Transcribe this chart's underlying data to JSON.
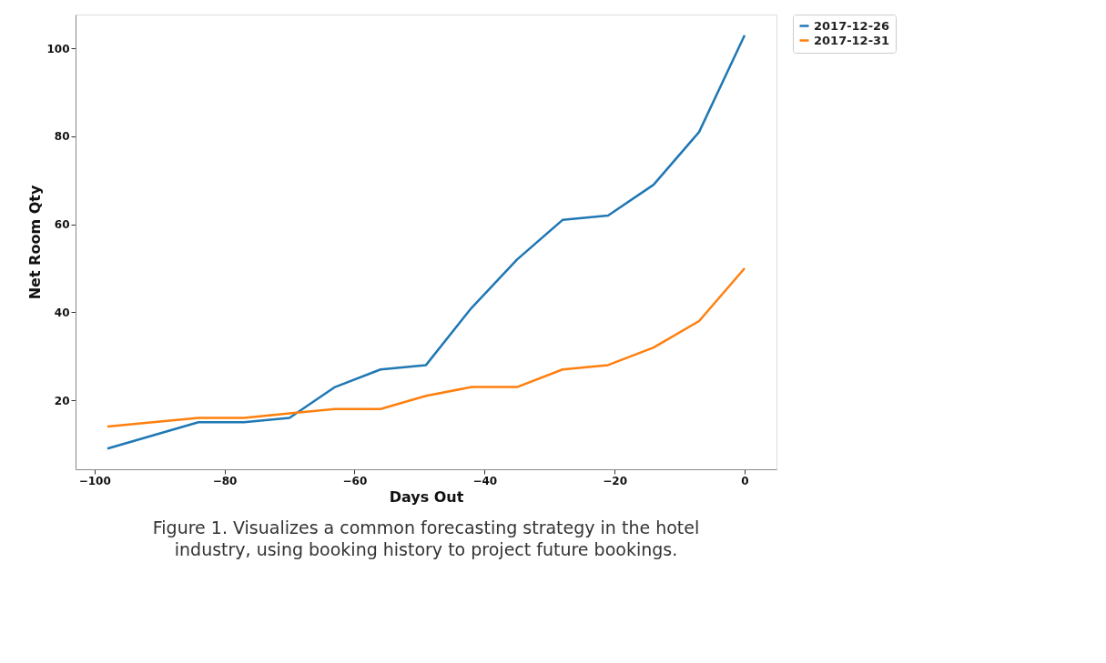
{
  "chart_data": {
    "type": "line",
    "xlabel": "Days Out",
    "ylabel": "Net Room Qty",
    "x": [
      -98,
      -91,
      -84,
      -77,
      -70,
      -63,
      -56,
      -49,
      -42,
      -35,
      -28,
      -21,
      -14,
      -7,
      0
    ],
    "series": [
      {
        "name": "2017-12-26",
        "color": "#1f77b4",
        "values": [
          9,
          12,
          15,
          15,
          16,
          23,
          27,
          28,
          41,
          52,
          61,
          62,
          69,
          81,
          103
        ]
      },
      {
        "name": "2017-12-31",
        "color": "#ff7f0e",
        "values": [
          14,
          15,
          16,
          16,
          17,
          18,
          18,
          21,
          23,
          23,
          27,
          28,
          32,
          38,
          50
        ]
      }
    ],
    "xlim": [
      -102.9,
      4.9
    ],
    "ylim": [
      4.3,
      107.7
    ],
    "xticks": [
      -100,
      -80,
      -60,
      -40,
      -20,
      0
    ],
    "yticks": [
      20,
      40,
      60,
      80,
      100
    ],
    "grid": false,
    "legend": "top right",
    "marker": "none",
    "line_style": "solid",
    "annotations": [
      "Figure 1. Visualizes a common forecasting strategy in the hotel industry, using booking history to project future bookings."
    ]
  }
}
